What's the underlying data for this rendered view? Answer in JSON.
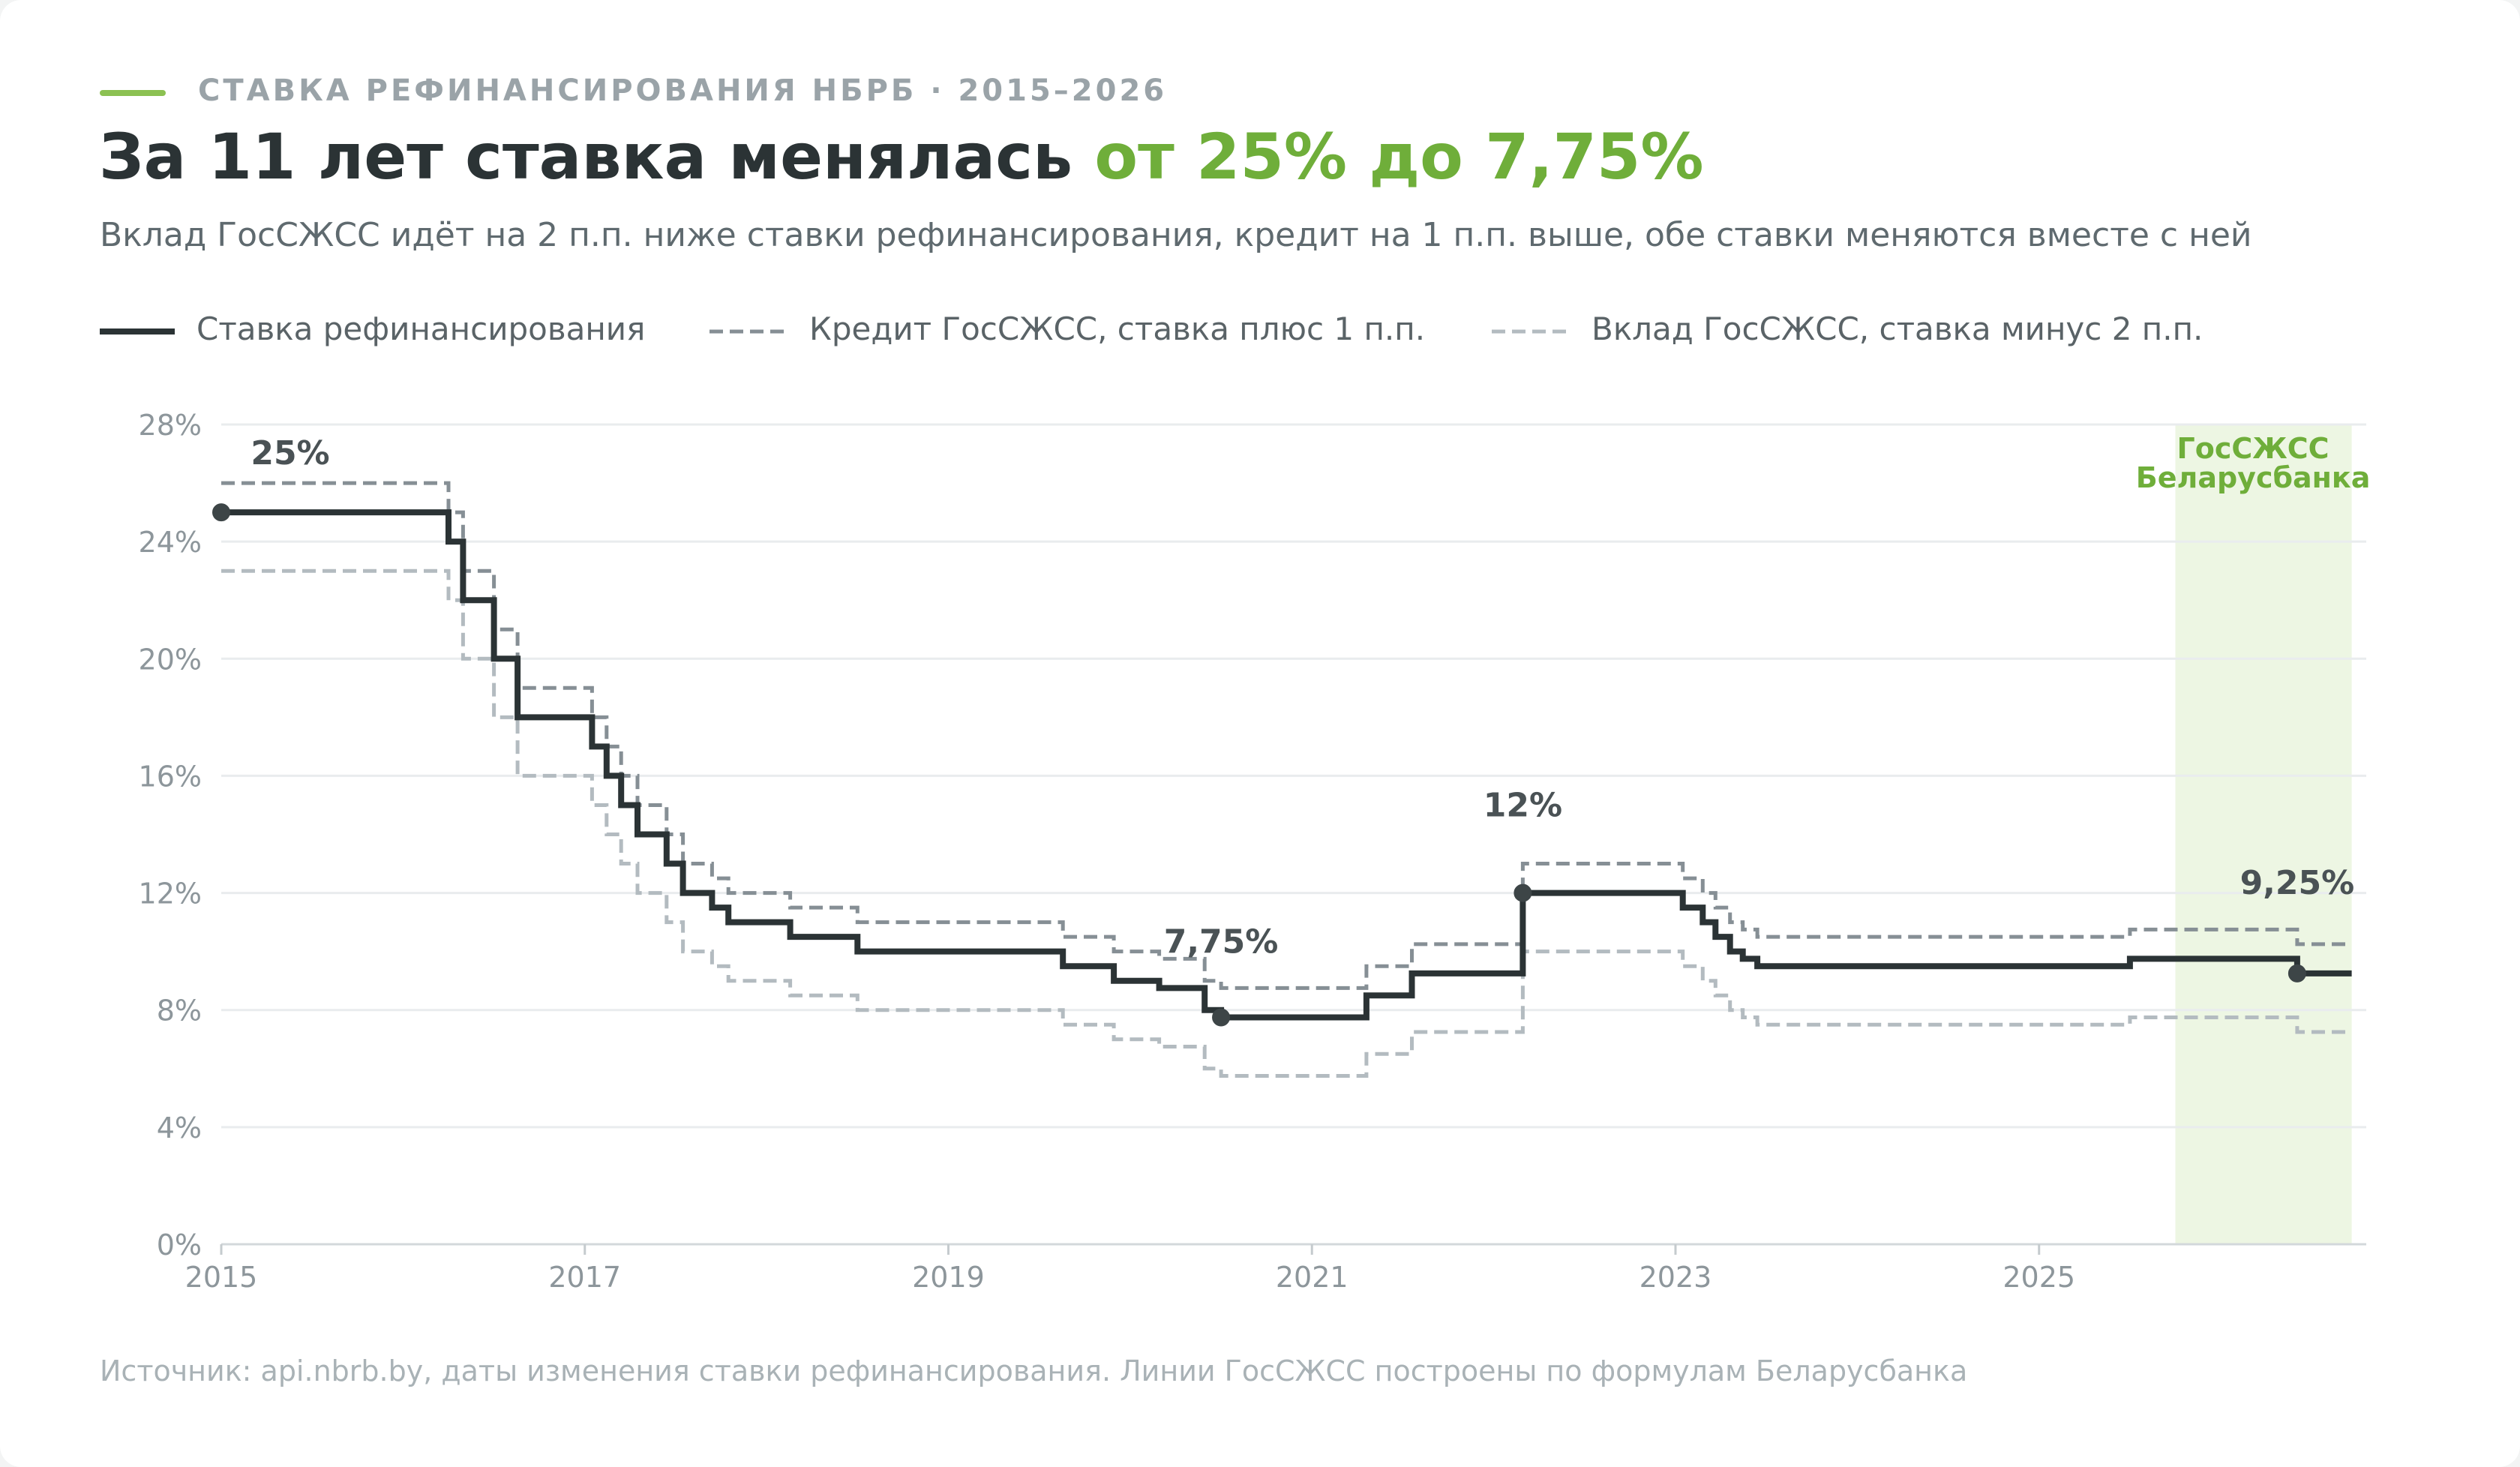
{
  "header": {
    "kicker": "СТАВКА РЕФИНАНСИРОВАНИЯ НБРБ · 2015–2026",
    "title_main": "За 11 лет ставка менялась ",
    "title_accent": "от 25% до 7,75%",
    "subtitle": "Вклад ГосСЖСС идёт на 2 п.п. ниже ставки рефинансирования, кредит на 1 п.п. выше, обе ставки меняются вместе с ней"
  },
  "legend": [
    "Ставка рефинансирования",
    "Кредит ГосСЖСС, ставка плюс 1 п.п.",
    "Вклад ГосСЖСС, ставка минус 2 п.п."
  ],
  "footer": {
    "source": "Источник: api.nbrb.by, даты изменения ставки рефинансирования. Линии ГосСЖСС построены по формулам Беларусбанка"
  },
  "colors": {
    "refinancing": "#2b3335",
    "credit": "#868f95",
    "deposit": "#b3bbc0",
    "accent": "#6fae3a",
    "highlight": "#edf6e3",
    "grid": "#e9ecee"
  },
  "chart_data": {
    "type": "line",
    "step": true,
    "xlim": [
      2015.0,
      2026.8
    ],
    "ylim": [
      0,
      28
    ],
    "x_ticks": [
      2015,
      2017,
      2019,
      2021,
      2023,
      2025
    ],
    "y_ticks": [
      "0%",
      "4%",
      "8%",
      "12%",
      "16%",
      "20%",
      "24%",
      "28%"
    ],
    "grid": true,
    "legend_position": "top-left",
    "series": [
      {
        "name": "Ставка рефинансирования",
        "style": "solid",
        "points": [
          [
            2015.0,
            25
          ],
          [
            2016.25,
            24
          ],
          [
            2016.33,
            22
          ],
          [
            2016.5,
            20
          ],
          [
            2016.63,
            18
          ],
          [
            2017.04,
            17
          ],
          [
            2017.12,
            16
          ],
          [
            2017.2,
            15
          ],
          [
            2017.29,
            14
          ],
          [
            2017.45,
            13
          ],
          [
            2017.54,
            12
          ],
          [
            2017.7,
            11.5
          ],
          [
            2017.79,
            11
          ],
          [
            2018.13,
            10.5
          ],
          [
            2018.5,
            10
          ],
          [
            2019.63,
            9.5
          ],
          [
            2019.91,
            9
          ],
          [
            2020.16,
            8.75
          ],
          [
            2020.41,
            8
          ],
          [
            2020.5,
            7.75
          ],
          [
            2021.3,
            8.5
          ],
          [
            2021.55,
            9.25
          ],
          [
            2022.16,
            12
          ],
          [
            2023.04,
            11.5
          ],
          [
            2023.15,
            11
          ],
          [
            2023.22,
            10.5
          ],
          [
            2023.3,
            10
          ],
          [
            2023.37,
            9.75
          ],
          [
            2023.45,
            9.5
          ],
          [
            2025.5,
            9.75
          ],
          [
            2026.42,
            9.25
          ],
          [
            2026.72,
            9.25
          ]
        ]
      },
      {
        "name": "Кредит ГосСЖСС, ставка плюс 1 п.п.",
        "style": "dashed",
        "offset": 1
      },
      {
        "name": "Вклад ГосСЖСС, ставка минус 2 п.п.",
        "style": "dashed",
        "offset": -2
      }
    ],
    "annotations": [
      {
        "x": 2015.0,
        "y": 25,
        "label": "25%"
      },
      {
        "x": 2020.5,
        "y": 7.75,
        "label": "7,75%"
      },
      {
        "x": 2022.16,
        "y": 12,
        "label": "12%"
      },
      {
        "x": 2026.42,
        "y": 9.25,
        "label": "9,25%"
      }
    ],
    "highlight_band": {
      "x_start": 2025.75,
      "x_end": 2026.72,
      "label_line1": "ГосСЖСС",
      "label_line2": "Беларусбанка"
    }
  }
}
